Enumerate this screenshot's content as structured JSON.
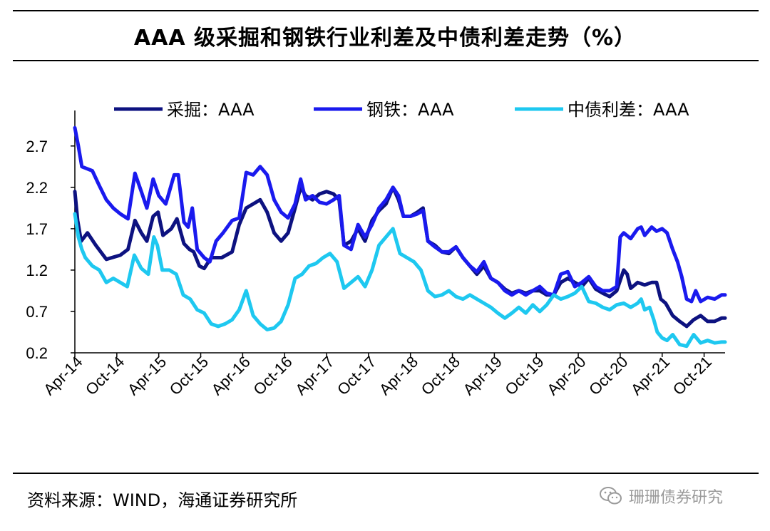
{
  "title": "AAA 级采掘和钢铁行业利差及中债利差走势（%）",
  "source": "资料来源：WIND，海通证券研究所",
  "watermark": "珊珊债券研究",
  "watermark_icon": "wechat-icon",
  "chart_data": {
    "type": "line",
    "title": "AAA 级采掘和钢铁行业利差及中债利差走势（%）",
    "xlabel": "",
    "ylabel": "",
    "ylim": [
      0.2,
      3.0
    ],
    "yticks": [
      0.2,
      0.7,
      1.2,
      1.7,
      2.2,
      2.7
    ],
    "ytick_labels": [
      "0.2",
      "0.7",
      "1.2",
      "1.7",
      "2.2",
      "2.7"
    ],
    "x_tick_labels": [
      "Apr-14",
      "Oct-14",
      "Apr-15",
      "Oct-15",
      "Apr-16",
      "Oct-16",
      "Apr-17",
      "Oct-17",
      "Apr-18",
      "Oct-18",
      "Apr-19",
      "Oct-19",
      "Apr-20",
      "Oct-20",
      "Apr-21",
      "Oct-21"
    ],
    "x_range_months": [
      0,
      93
    ],
    "legend_position": "top",
    "series": [
      {
        "name": "采掘：AAA",
        "color": "#0d1280",
        "points": [
          [
            0,
            2.15
          ],
          [
            0.4,
            1.8
          ],
          [
            0.9,
            1.55
          ],
          [
            1.8,
            1.65
          ],
          [
            3,
            1.5
          ],
          [
            4.5,
            1.33
          ],
          [
            6.5,
            1.38
          ],
          [
            7.6,
            1.45
          ],
          [
            8.6,
            1.8
          ],
          [
            9.5,
            1.65
          ],
          [
            10.3,
            1.55
          ],
          [
            11.2,
            1.85
          ],
          [
            11.9,
            1.9
          ],
          [
            12.6,
            1.62
          ],
          [
            13.8,
            1.7
          ],
          [
            14.6,
            1.82
          ],
          [
            15.6,
            1.52
          ],
          [
            16.4,
            1.45
          ],
          [
            17,
            1.42
          ],
          [
            17.8,
            1.25
          ],
          [
            18.5,
            1.22
          ],
          [
            19.5,
            1.35
          ],
          [
            21,
            1.35
          ],
          [
            22.5,
            1.42
          ],
          [
            23.5,
            1.75
          ],
          [
            24.5,
            1.95
          ],
          [
            25.5,
            2.0
          ],
          [
            26.5,
            2.05
          ],
          [
            27.5,
            1.9
          ],
          [
            28.5,
            1.65
          ],
          [
            29.5,
            1.55
          ],
          [
            30.5,
            1.65
          ],
          [
            31.5,
            1.95
          ],
          [
            32.3,
            2.2
          ],
          [
            33,
            2.1
          ],
          [
            34,
            2.05
          ],
          [
            35,
            2.12
          ],
          [
            36,
            2.15
          ],
          [
            37,
            2.12
          ],
          [
            37.8,
            2.05
          ],
          [
            38.5,
            1.5
          ],
          [
            39.5,
            1.55
          ],
          [
            40.5,
            1.7
          ],
          [
            41.5,
            1.55
          ],
          [
            42.5,
            1.8
          ],
          [
            43.5,
            1.92
          ],
          [
            44.5,
            2.0
          ],
          [
            45.5,
            2.2
          ],
          [
            46.3,
            2.05
          ],
          [
            47,
            1.85
          ],
          [
            48,
            1.85
          ],
          [
            49,
            1.9
          ],
          [
            49.8,
            1.95
          ],
          [
            50.5,
            1.55
          ],
          [
            51.5,
            1.5
          ],
          [
            52.5,
            1.42
          ],
          [
            53.5,
            1.4
          ],
          [
            54.5,
            1.48
          ],
          [
            55.5,
            1.35
          ],
          [
            56.5,
            1.25
          ],
          [
            57.5,
            1.15
          ],
          [
            58.5,
            1.25
          ],
          [
            59.5,
            1.1
          ],
          [
            60.5,
            1.05
          ],
          [
            61.5,
            0.97
          ],
          [
            62.5,
            0.92
          ],
          [
            63.5,
            0.95
          ],
          [
            64.5,
            0.92
          ],
          [
            65.5,
            0.95
          ],
          [
            66.5,
            0.95
          ],
          [
            67.5,
            0.9
          ],
          [
            68.5,
            0.9
          ],
          [
            69.5,
            1.05
          ],
          [
            70.5,
            1.1
          ],
          [
            71.5,
            1.05
          ],
          [
            72.5,
            1.0
          ],
          [
            73.5,
            1.1
          ],
          [
            74.5,
            0.97
          ],
          [
            75.5,
            0.92
          ],
          [
            76.5,
            0.88
          ],
          [
            77.5,
            0.95
          ],
          [
            78.5,
            1.2
          ],
          [
            79,
            1.15
          ],
          [
            79.5,
            0.98
          ],
          [
            80.5,
            1.05
          ],
          [
            81.5,
            1.02
          ],
          [
            82.5,
            1.05
          ],
          [
            83.2,
            1.05
          ],
          [
            83.8,
            0.85
          ],
          [
            84.5,
            0.8
          ],
          [
            85.5,
            0.65
          ],
          [
            86.5,
            0.58
          ],
          [
            87.5,
            0.52
          ],
          [
            88.5,
            0.6
          ],
          [
            89.5,
            0.65
          ],
          [
            90.5,
            0.58
          ],
          [
            91.5,
            0.58
          ],
          [
            92.5,
            0.62
          ],
          [
            93,
            0.62
          ]
        ]
      },
      {
        "name": "钢铁：AAA",
        "color": "#1a1aee",
        "points": [
          [
            0,
            2.92
          ],
          [
            0.5,
            2.7
          ],
          [
            1,
            2.45
          ],
          [
            2.5,
            2.4
          ],
          [
            3.5,
            2.22
          ],
          [
            4.5,
            2.05
          ],
          [
            5.5,
            1.95
          ],
          [
            6.5,
            1.88
          ],
          [
            7.6,
            1.82
          ],
          [
            8.6,
            2.37
          ],
          [
            9.5,
            2.15
          ],
          [
            10.3,
            1.95
          ],
          [
            11.2,
            2.3
          ],
          [
            12,
            2.1
          ],
          [
            13,
            2.0
          ],
          [
            14.2,
            2.35
          ],
          [
            14.8,
            2.35
          ],
          [
            15.6,
            1.78
          ],
          [
            16.2,
            1.72
          ],
          [
            16.8,
            1.95
          ],
          [
            17.5,
            1.45
          ],
          [
            18.5,
            1.35
          ],
          [
            19.3,
            1.3
          ],
          [
            20.2,
            1.55
          ],
          [
            21.2,
            1.65
          ],
          [
            22.5,
            1.8
          ],
          [
            23.5,
            1.83
          ],
          [
            24.5,
            2.38
          ],
          [
            25.5,
            2.35
          ],
          [
            26.5,
            2.45
          ],
          [
            27.5,
            2.35
          ],
          [
            28.5,
            2.05
          ],
          [
            29.5,
            1.9
          ],
          [
            30.5,
            1.83
          ],
          [
            31.5,
            2.0
          ],
          [
            32.3,
            2.3
          ],
          [
            33,
            2.05
          ],
          [
            34,
            2.1
          ],
          [
            35,
            2.02
          ],
          [
            36,
            2.0
          ],
          [
            37,
            2.05
          ],
          [
            37.8,
            2.1
          ],
          [
            38.5,
            1.5
          ],
          [
            39.5,
            1.45
          ],
          [
            40.5,
            1.75
          ],
          [
            41.5,
            1.6
          ],
          [
            42.5,
            1.75
          ],
          [
            43.5,
            1.95
          ],
          [
            44.5,
            2.05
          ],
          [
            45.5,
            2.2
          ],
          [
            46.3,
            2.1
          ],
          [
            47,
            1.85
          ],
          [
            48,
            1.85
          ],
          [
            49,
            1.88
          ],
          [
            49.8,
            1.92
          ],
          [
            50.5,
            1.55
          ],
          [
            51.5,
            1.48
          ],
          [
            52.5,
            1.42
          ],
          [
            53.5,
            1.42
          ],
          [
            54.5,
            1.48
          ],
          [
            55.5,
            1.35
          ],
          [
            56.5,
            1.25
          ],
          [
            57.5,
            1.18
          ],
          [
            58.5,
            1.3
          ],
          [
            59.5,
            1.1
          ],
          [
            60.5,
            1.05
          ],
          [
            61.5,
            0.95
          ],
          [
            62.5,
            0.9
          ],
          [
            63.5,
            0.95
          ],
          [
            64.5,
            0.9
          ],
          [
            65.5,
            0.95
          ],
          [
            66.5,
            1.0
          ],
          [
            67.5,
            0.92
          ],
          [
            68.5,
            0.9
          ],
          [
            69.5,
            1.15
          ],
          [
            70.5,
            1.18
          ],
          [
            71.5,
            1.0
          ],
          [
            72.5,
            1.05
          ],
          [
            73.5,
            1.12
          ],
          [
            74.5,
            1.0
          ],
          [
            75.5,
            0.95
          ],
          [
            76.5,
            0.95
          ],
          [
            77.5,
            1.0
          ],
          [
            78,
            1.6
          ],
          [
            78.5,
            1.65
          ],
          [
            79.5,
            1.58
          ],
          [
            80.5,
            1.7
          ],
          [
            81,
            1.72
          ],
          [
            81.5,
            1.62
          ],
          [
            82.5,
            1.72
          ],
          [
            83.2,
            1.67
          ],
          [
            84,
            1.7
          ],
          [
            84.7,
            1.65
          ],
          [
            85.5,
            1.45
          ],
          [
            86.2,
            1.3
          ],
          [
            86.8,
            1.12
          ],
          [
            87.5,
            0.85
          ],
          [
            88.2,
            0.82
          ],
          [
            88.8,
            0.95
          ],
          [
            89.5,
            0.82
          ],
          [
            90.5,
            0.87
          ],
          [
            91.5,
            0.85
          ],
          [
            92.5,
            0.9
          ],
          [
            93,
            0.9
          ]
        ]
      },
      {
        "name": "中债利差：AAA",
        "color": "#1ec8f0",
        "points": [
          [
            0,
            1.88
          ],
          [
            0.5,
            1.6
          ],
          [
            1,
            1.45
          ],
          [
            1.5,
            1.35
          ],
          [
            2.5,
            1.25
          ],
          [
            3.5,
            1.2
          ],
          [
            4.5,
            1.05
          ],
          [
            5.5,
            1.1
          ],
          [
            6.5,
            1.05
          ],
          [
            7.5,
            1.0
          ],
          [
            8.5,
            1.38
          ],
          [
            9.5,
            1.22
          ],
          [
            10.5,
            1.15
          ],
          [
            11.3,
            1.6
          ],
          [
            11.8,
            1.5
          ],
          [
            12.5,
            1.2
          ],
          [
            13.5,
            1.2
          ],
          [
            14.5,
            1.15
          ],
          [
            15.5,
            0.9
          ],
          [
            16.5,
            0.85
          ],
          [
            17.5,
            0.72
          ],
          [
            18.5,
            0.68
          ],
          [
            19.5,
            0.55
          ],
          [
            20.5,
            0.52
          ],
          [
            21.5,
            0.55
          ],
          [
            22.5,
            0.6
          ],
          [
            23.5,
            0.72
          ],
          [
            24.5,
            0.95
          ],
          [
            25.5,
            0.65
          ],
          [
            26.5,
            0.55
          ],
          [
            27.5,
            0.48
          ],
          [
            28.5,
            0.5
          ],
          [
            29.5,
            0.58
          ],
          [
            30.5,
            0.78
          ],
          [
            31.5,
            1.1
          ],
          [
            32.5,
            1.15
          ],
          [
            33.5,
            1.25
          ],
          [
            34.5,
            1.28
          ],
          [
            35.5,
            1.35
          ],
          [
            36.5,
            1.4
          ],
          [
            37.5,
            1.3
          ],
          [
            38.5,
            0.98
          ],
          [
            39.5,
            1.05
          ],
          [
            40.5,
            1.12
          ],
          [
            41.5,
            1.0
          ],
          [
            42.5,
            1.2
          ],
          [
            43.5,
            1.5
          ],
          [
            44.5,
            1.6
          ],
          [
            45.5,
            1.7
          ],
          [
            46.5,
            1.4
          ],
          [
            47.5,
            1.35
          ],
          [
            48.5,
            1.3
          ],
          [
            49.5,
            1.2
          ],
          [
            50.5,
            0.95
          ],
          [
            51.5,
            0.88
          ],
          [
            52.5,
            0.9
          ],
          [
            53.5,
            0.95
          ],
          [
            54.5,
            0.88
          ],
          [
            55.5,
            0.85
          ],
          [
            56.5,
            0.9
          ],
          [
            57.5,
            0.85
          ],
          [
            58.5,
            0.8
          ],
          [
            59.5,
            0.75
          ],
          [
            60.5,
            0.68
          ],
          [
            61.5,
            0.62
          ],
          [
            62.5,
            0.68
          ],
          [
            63.5,
            0.75
          ],
          [
            64.5,
            0.68
          ],
          [
            65.5,
            0.78
          ],
          [
            66.5,
            0.7
          ],
          [
            67.5,
            0.78
          ],
          [
            68.5,
            0.9
          ],
          [
            69.5,
            0.85
          ],
          [
            70.5,
            0.88
          ],
          [
            71.5,
            0.92
          ],
          [
            72.5,
            1.0
          ],
          [
            73.5,
            0.82
          ],
          [
            74.5,
            0.8
          ],
          [
            75.5,
            0.75
          ],
          [
            76.5,
            0.72
          ],
          [
            77.5,
            0.78
          ],
          [
            78.5,
            0.8
          ],
          [
            79.5,
            0.75
          ],
          [
            80.5,
            0.8
          ],
          [
            81,
            0.85
          ],
          [
            81.5,
            0.72
          ],
          [
            82.2,
            0.75
          ],
          [
            82.8,
            0.6
          ],
          [
            83.3,
            0.45
          ],
          [
            84,
            0.38
          ],
          [
            84.7,
            0.35
          ],
          [
            85.5,
            0.42
          ],
          [
            86.5,
            0.3
          ],
          [
            87.5,
            0.28
          ],
          [
            88.5,
            0.42
          ],
          [
            89.5,
            0.32
          ],
          [
            90.5,
            0.35
          ],
          [
            91.5,
            0.32
          ],
          [
            92.5,
            0.33
          ],
          [
            93,
            0.33
          ]
        ]
      }
    ]
  }
}
